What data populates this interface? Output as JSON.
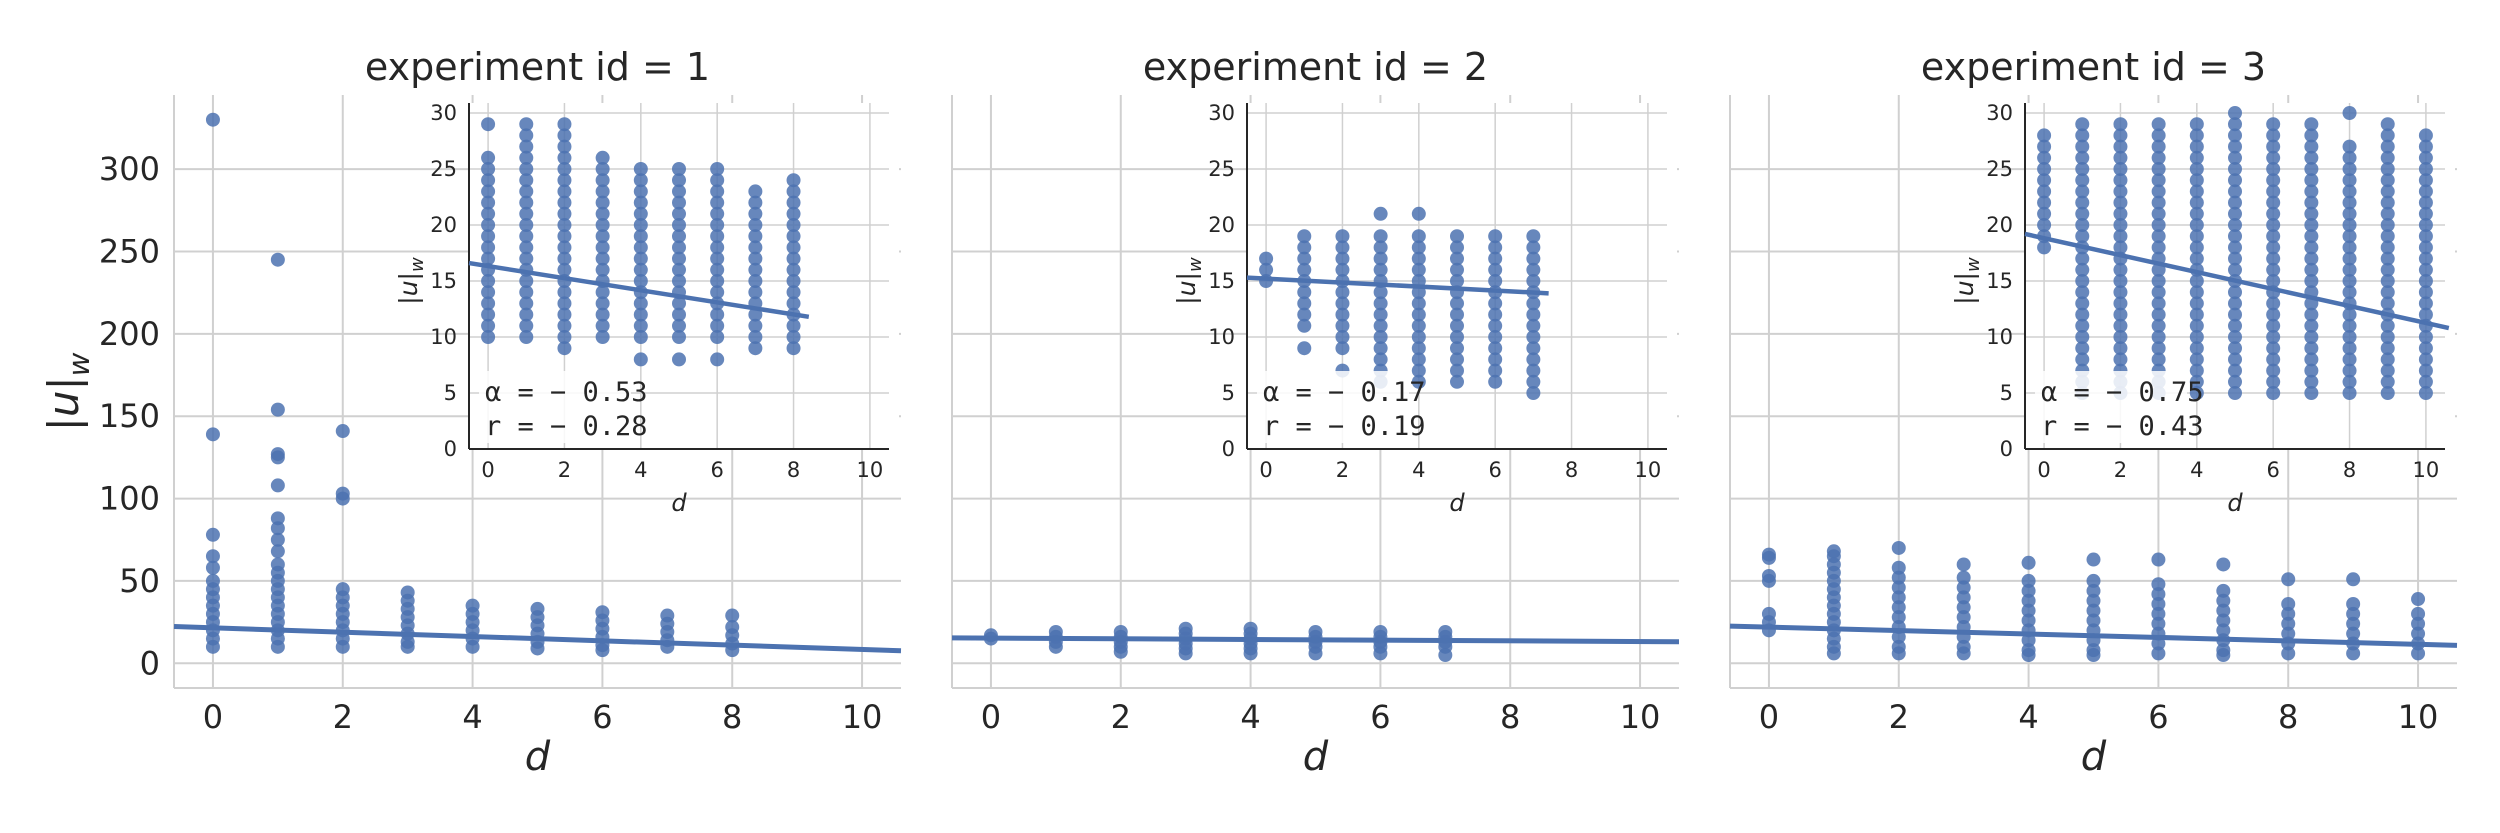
{
  "colors": {
    "points": "#4c72b0",
    "line": "#4c72b0",
    "grid": "#d0d0d0",
    "axis": "#262626"
  },
  "chart_data": [
    {
      "type": "scatter",
      "title": "experiment id = 1",
      "xlabel": "d",
      "ylabel": "|u|_w",
      "xlim": [
        -0.6,
        10.6
      ],
      "ylim": [
        -15,
        345
      ],
      "xticks": [
        "0",
        "2",
        "4",
        "6",
        "8",
        "10"
      ],
      "yticks": [
        "0",
        "50",
        "100",
        "150",
        "200",
        "250",
        "300"
      ],
      "grid": true,
      "points": [
        [
          0,
          330
        ],
        [
          0,
          139
        ],
        [
          0,
          78
        ],
        [
          0,
          65
        ],
        [
          0,
          58
        ],
        [
          0,
          50
        ],
        [
          0,
          45
        ],
        [
          0,
          40
        ],
        [
          0,
          35
        ],
        [
          0,
          30
        ],
        [
          0,
          25
        ],
        [
          0,
          20
        ],
        [
          0,
          15
        ],
        [
          0,
          10
        ],
        [
          1,
          245
        ],
        [
          1,
          154
        ],
        [
          1,
          127
        ],
        [
          1,
          125
        ],
        [
          1,
          108
        ],
        [
          1,
          88
        ],
        [
          1,
          82
        ],
        [
          1,
          75
        ],
        [
          1,
          68
        ],
        [
          1,
          60
        ],
        [
          1,
          55
        ],
        [
          1,
          50
        ],
        [
          1,
          45
        ],
        [
          1,
          40
        ],
        [
          1,
          35
        ],
        [
          1,
          30
        ],
        [
          1,
          25
        ],
        [
          1,
          20
        ],
        [
          1,
          15
        ],
        [
          1,
          10
        ],
        [
          2,
          141
        ],
        [
          2,
          103
        ],
        [
          2,
          100
        ],
        [
          2,
          45
        ],
        [
          2,
          40
        ],
        [
          2,
          35
        ],
        [
          2,
          30
        ],
        [
          2,
          25
        ],
        [
          2,
          20
        ],
        [
          2,
          15
        ],
        [
          2,
          10
        ],
        [
          3,
          43
        ],
        [
          3,
          38
        ],
        [
          3,
          33
        ],
        [
          3,
          28
        ],
        [
          3,
          23
        ],
        [
          3,
          18
        ],
        [
          3,
          13
        ],
        [
          3,
          10
        ],
        [
          4,
          35
        ],
        [
          4,
          30
        ],
        [
          4,
          25
        ],
        [
          4,
          20
        ],
        [
          4,
          15
        ],
        [
          4,
          10
        ],
        [
          5,
          33
        ],
        [
          5,
          28
        ],
        [
          5,
          23
        ],
        [
          5,
          18
        ],
        [
          5,
          13
        ],
        [
          5,
          9
        ],
        [
          6,
          31
        ],
        [
          6,
          26
        ],
        [
          6,
          21
        ],
        [
          6,
          16
        ],
        [
          6,
          11
        ],
        [
          6,
          8
        ],
        [
          7,
          29
        ],
        [
          7,
          24
        ],
        [
          7,
          19
        ],
        [
          7,
          14
        ],
        [
          7,
          10
        ],
        [
          8,
          29
        ],
        [
          8,
          22
        ],
        [
          8,
          17
        ],
        [
          8,
          12
        ],
        [
          8,
          8
        ]
      ],
      "regression": {
        "x": [
          -0.6,
          10.6
        ],
        "y": [
          22.3,
          7.6
        ]
      },
      "inset": {
        "xlabel": "d",
        "ylabel": "|u|_w",
        "xlim": [
          -0.5,
          10.5
        ],
        "ylim": [
          0,
          30
        ],
        "xticks": [
          "0",
          "2",
          "4",
          "6",
          "8",
          "10"
        ],
        "yticks": [
          "0",
          "5",
          "10",
          "15",
          "20",
          "25",
          "30"
        ],
        "columns": [
          {
            "x": 0,
            "ymin": 10,
            "ymax": 26,
            "extra": [
              29
            ]
          },
          {
            "x": 1,
            "ymin": 10,
            "ymax": 29,
            "extra": []
          },
          {
            "x": 2,
            "ymin": 10,
            "ymax": 29,
            "extra": [
              9
            ]
          },
          {
            "x": 3,
            "ymin": 10,
            "ymax": 26,
            "extra": []
          },
          {
            "x": 4,
            "ymin": 10,
            "ymax": 25,
            "extra": [
              8
            ]
          },
          {
            "x": 5,
            "ymin": 10,
            "ymax": 25,
            "extra": [
              8
            ]
          },
          {
            "x": 6,
            "ymin": 10,
            "ymax": 25,
            "extra": [
              8
            ]
          },
          {
            "x": 7,
            "ymin": 9,
            "ymax": 23,
            "extra": []
          },
          {
            "x": 8,
            "ymin": 9,
            "ymax": 24,
            "extra": []
          }
        ],
        "regression": {
          "x": [
            -0.5,
            8.4
          ],
          "y": [
            16.6,
            11.8
          ]
        },
        "alpha_label": "α = − 0.53",
        "r_label": "r = − 0.28"
      }
    },
    {
      "type": "scatter",
      "title": "experiment id = 2",
      "xlabel": "d",
      "ylabel": "",
      "xlim": [
        -0.6,
        10.6
      ],
      "ylim": [
        -15,
        345
      ],
      "xticks": [
        "0",
        "2",
        "4",
        "6",
        "8",
        "10"
      ],
      "yticks": [],
      "grid": true,
      "points": [
        [
          0,
          17
        ],
        [
          0,
          15
        ],
        [
          1,
          19
        ],
        [
          1,
          16
        ],
        [
          1,
          13
        ],
        [
          1,
          10
        ],
        [
          2,
          19
        ],
        [
          2,
          16
        ],
        [
          2,
          13
        ],
        [
          2,
          10
        ],
        [
          2,
          7
        ],
        [
          3,
          21
        ],
        [
          3,
          18
        ],
        [
          3,
          15
        ],
        [
          3,
          12
        ],
        [
          3,
          9
        ],
        [
          3,
          6
        ],
        [
          4,
          21
        ],
        [
          4,
          18
        ],
        [
          4,
          15
        ],
        [
          4,
          12
        ],
        [
          4,
          9
        ],
        [
          4,
          6
        ],
        [
          5,
          19
        ],
        [
          5,
          16
        ],
        [
          5,
          13
        ],
        [
          5,
          10
        ],
        [
          5,
          6
        ],
        [
          6,
          19
        ],
        [
          6,
          16
        ],
        [
          6,
          13
        ],
        [
          6,
          10
        ],
        [
          6,
          6
        ],
        [
          7,
          19
        ],
        [
          7,
          16
        ],
        [
          7,
          13
        ],
        [
          7,
          10
        ],
        [
          7,
          5
        ]
      ],
      "regression": {
        "x": [
          -0.6,
          10.6
        ],
        "y": [
          15.4,
          13.1
        ]
      },
      "inset": {
        "xlabel": "d",
        "ylabel": "|u|_w",
        "xlim": [
          -0.5,
          10.5
        ],
        "ylim": [
          0,
          30
        ],
        "xticks": [
          "0",
          "2",
          "4",
          "6",
          "8",
          "10"
        ],
        "yticks": [
          "0",
          "5",
          "10",
          "15",
          "20",
          "25",
          "30"
        ],
        "columns": [
          {
            "x": 0,
            "ymin": 15,
            "ymax": 17,
            "extra": []
          },
          {
            "x": 1,
            "ymin": 11,
            "ymax": 19,
            "extra": [
              9
            ]
          },
          {
            "x": 2,
            "ymin": 10,
            "ymax": 19,
            "extra": [
              7,
              9
            ]
          },
          {
            "x": 3,
            "ymin": 7,
            "ymax": 19,
            "extra": [
              21,
              6
            ]
          },
          {
            "x": 4,
            "ymin": 7,
            "ymax": 19,
            "extra": [
              21,
              6
            ]
          },
          {
            "x": 5,
            "ymin": 6,
            "ymax": 19,
            "extra": []
          },
          {
            "x": 6,
            "ymin": 6,
            "ymax": 19,
            "extra": []
          },
          {
            "x": 7,
            "ymin": 5,
            "ymax": 19,
            "extra": []
          }
        ],
        "regression": {
          "x": [
            -0.5,
            7.4
          ],
          "y": [
            15.3,
            13.9
          ]
        },
        "alpha_label": "α = − 0.17",
        "r_label": "r = − 0.19"
      }
    },
    {
      "type": "scatter",
      "title": "experiment id = 3",
      "xlabel": "d",
      "ylabel": "",
      "xlim": [
        -0.6,
        10.6
      ],
      "ylim": [
        -15,
        345
      ],
      "xticks": [
        "0",
        "2",
        "4",
        "6",
        "8",
        "10"
      ],
      "yticks": [],
      "grid": true,
      "points": [
        [
          0,
          66
        ],
        [
          0,
          64
        ],
        [
          0,
          53
        ],
        [
          0,
          50
        ],
        [
          0,
          30
        ],
        [
          0,
          25
        ],
        [
          0,
          20
        ],
        [
          1,
          68
        ],
        [
          1,
          65
        ],
        [
          1,
          60
        ],
        [
          1,
          55
        ],
        [
          1,
          50
        ],
        [
          1,
          45
        ],
        [
          1,
          40
        ],
        [
          1,
          35
        ],
        [
          1,
          30
        ],
        [
          1,
          25
        ],
        [
          1,
          20
        ],
        [
          1,
          15
        ],
        [
          1,
          10
        ],
        [
          1,
          6
        ],
        [
          2,
          70
        ],
        [
          2,
          58
        ],
        [
          2,
          52
        ],
        [
          2,
          46
        ],
        [
          2,
          40
        ],
        [
          2,
          34
        ],
        [
          2,
          28
        ],
        [
          2,
          22
        ],
        [
          2,
          16
        ],
        [
          2,
          10
        ],
        [
          2,
          6
        ],
        [
          3,
          60
        ],
        [
          3,
          52
        ],
        [
          3,
          46
        ],
        [
          3,
          40
        ],
        [
          3,
          34
        ],
        [
          3,
          28
        ],
        [
          3,
          22
        ],
        [
          3,
          16
        ],
        [
          3,
          10
        ],
        [
          3,
          6
        ],
        [
          4,
          61
        ],
        [
          4,
          50
        ],
        [
          4,
          44
        ],
        [
          4,
          38
        ],
        [
          4,
          32
        ],
        [
          4,
          26
        ],
        [
          4,
          20
        ],
        [
          4,
          14
        ],
        [
          4,
          8
        ],
        [
          4,
          5
        ],
        [
          5,
          63
        ],
        [
          5,
          50
        ],
        [
          5,
          44
        ],
        [
          5,
          38
        ],
        [
          5,
          32
        ],
        [
          5,
          26
        ],
        [
          5,
          20
        ],
        [
          5,
          14
        ],
        [
          5,
          8
        ],
        [
          5,
          5
        ],
        [
          6,
          63
        ],
        [
          6,
          48
        ],
        [
          6,
          42
        ],
        [
          6,
          36
        ],
        [
          6,
          30
        ],
        [
          6,
          24
        ],
        [
          6,
          18
        ],
        [
          6,
          12
        ],
        [
          6,
          6
        ],
        [
          7,
          60
        ],
        [
          7,
          44
        ],
        [
          7,
          38
        ],
        [
          7,
          32
        ],
        [
          7,
          26
        ],
        [
          7,
          20
        ],
        [
          7,
          14
        ],
        [
          7,
          8
        ],
        [
          7,
          5
        ],
        [
          8,
          51
        ],
        [
          8,
          36
        ],
        [
          8,
          30
        ],
        [
          8,
          24
        ],
        [
          8,
          18
        ],
        [
          8,
          12
        ],
        [
          8,
          6
        ],
        [
          9,
          51
        ],
        [
          9,
          36
        ],
        [
          9,
          30
        ],
        [
          9,
          24
        ],
        [
          9,
          18
        ],
        [
          9,
          12
        ],
        [
          9,
          6
        ],
        [
          10,
          39
        ],
        [
          10,
          30
        ],
        [
          10,
          24
        ],
        [
          10,
          18
        ],
        [
          10,
          12
        ],
        [
          10,
          6
        ]
      ],
      "regression": {
        "x": [
          -0.6,
          10.6
        ],
        "y": [
          22.6,
          10.9
        ]
      },
      "inset": {
        "xlabel": "d",
        "ylabel": "|u|_w",
        "xlim": [
          -0.5,
          10.5
        ],
        "ylim": [
          0,
          30
        ],
        "xticks": [
          "0",
          "2",
          "4",
          "6",
          "8",
          "10"
        ],
        "yticks": [
          "0",
          "5",
          "10",
          "15",
          "20",
          "25",
          "30"
        ],
        "columns": [
          {
            "x": 0,
            "ymin": 18,
            "ymax": 28,
            "extra": []
          },
          {
            "x": 1,
            "ymin": 5,
            "ymax": 29,
            "extra": []
          },
          {
            "x": 2,
            "ymin": 5,
            "ymax": 29,
            "extra": []
          },
          {
            "x": 3,
            "ymin": 5,
            "ymax": 29,
            "extra": []
          },
          {
            "x": 4,
            "ymin": 5,
            "ymax": 29,
            "extra": []
          },
          {
            "x": 5,
            "ymin": 5,
            "ymax": 29,
            "extra": [
              30
            ]
          },
          {
            "x": 6,
            "ymin": 5,
            "ymax": 29,
            "extra": []
          },
          {
            "x": 7,
            "ymin": 5,
            "ymax": 29,
            "extra": []
          },
          {
            "x": 8,
            "ymin": 5,
            "ymax": 27,
            "extra": [
              30
            ]
          },
          {
            "x": 9,
            "ymin": 5,
            "ymax": 29,
            "extra": []
          },
          {
            "x": 10,
            "ymin": 5,
            "ymax": 28,
            "extra": []
          }
        ],
        "regression": {
          "x": [
            -0.5,
            10.6
          ],
          "y": [
            19.2,
            10.8
          ]
        },
        "alpha_label": "α = − 0.75",
        "r_label": "r = − 0.43"
      }
    }
  ]
}
